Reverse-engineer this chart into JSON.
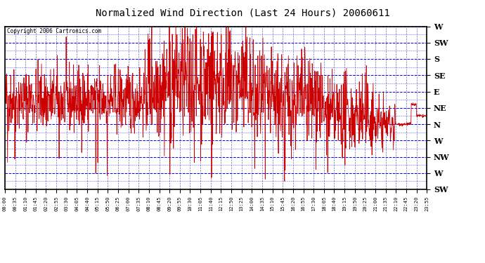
{
  "title": "Normalized Wind Direction (Last 24 Hours) 20060611",
  "copyright": "Copyright 2006 Cartronics.com",
  "bg_color": "#FFFFFF",
  "plot_bg_color": "#FFFFFF",
  "grid_color_h": "#0000FF",
  "grid_color_v": "#555577",
  "line_color": "#CC0000",
  "title_color": "#000000",
  "ytick_labels": [
    "SW",
    "W",
    "NW",
    "W",
    "N",
    "NE",
    "E",
    "SE",
    "S",
    "SW",
    "W"
  ],
  "ytick_values": [
    0,
    1,
    2,
    3,
    4,
    5,
    6,
    7,
    8,
    9,
    10
  ],
  "ylim": [
    0,
    10
  ],
  "xtick_labels": [
    "00:00",
    "00:35",
    "01:10",
    "01:45",
    "02:20",
    "02:55",
    "03:30",
    "04:05",
    "04:40",
    "05:15",
    "05:50",
    "06:25",
    "07:00",
    "07:35",
    "08:10",
    "08:45",
    "09:20",
    "09:55",
    "10:30",
    "11:05",
    "11:40",
    "12:15",
    "12:50",
    "13:25",
    "14:00",
    "14:35",
    "15:10",
    "15:45",
    "16:20",
    "16:55",
    "17:30",
    "18:05",
    "18:40",
    "19:15",
    "19:50",
    "20:25",
    "21:00",
    "21:35",
    "22:10",
    "22:45",
    "23:20",
    "23:55"
  ],
  "num_points": 1440,
  "seed": 42
}
